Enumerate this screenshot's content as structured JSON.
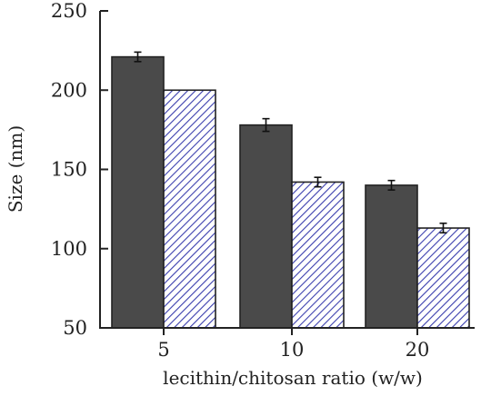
{
  "chart_data": {
    "type": "bar",
    "title": "",
    "xlabel": "lecithin/chitosan ratio (w/w)",
    "ylabel": "Size (nm)",
    "ylim": [
      50,
      250
    ],
    "yticks": [
      "50",
      "100",
      "150",
      "200",
      "250"
    ],
    "categories": [
      "5",
      "10",
      "20"
    ],
    "grid": false,
    "legend": "none",
    "series": [
      {
        "values": [
          221,
          178,
          140
        ],
        "errors": [
          3,
          4,
          3
        ],
        "fill": "solid",
        "color": "#4a4a4a"
      },
      {
        "values": [
          200,
          142,
          113
        ],
        "errors": [
          0,
          3,
          3
        ],
        "fill": "hatched",
        "color": "#3b3fae"
      }
    ]
  }
}
